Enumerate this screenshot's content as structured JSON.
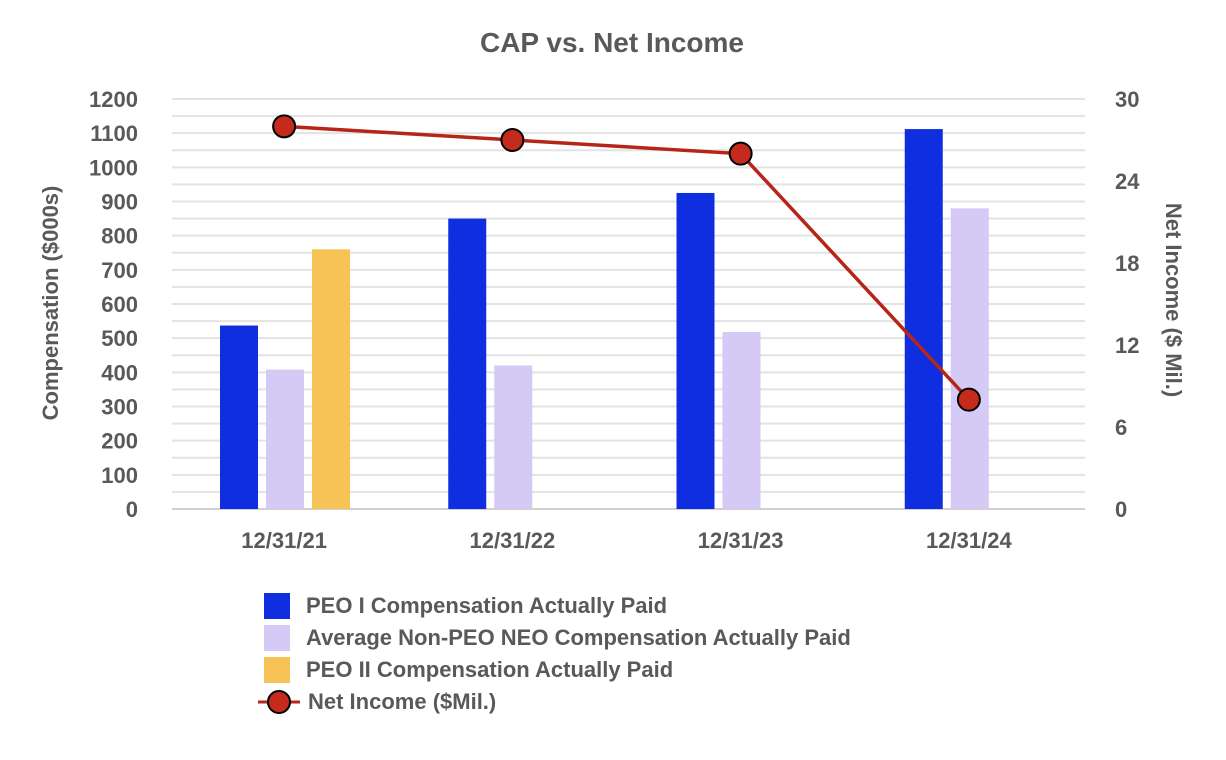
{
  "chart_data": {
    "type": "bar",
    "title": "CAP vs. Net Income",
    "categories": [
      "12/31/21",
      "12/31/22",
      "12/31/23",
      "12/31/24"
    ],
    "ylabel": "Compensation ($000s)",
    "ylim": [
      0,
      1200
    ],
    "yticks": [
      0,
      100,
      200,
      300,
      400,
      500,
      600,
      700,
      800,
      900,
      1000,
      1100,
      1200
    ],
    "y2label": "Net Income ($ Mil.)",
    "y2lim": [
      0,
      30
    ],
    "y2ticks": [
      0,
      6,
      12,
      18,
      24,
      30
    ],
    "grid": true,
    "legend_position": "bottom",
    "series": [
      {
        "name": "PEO I Compensation Actually Paid",
        "type": "bar",
        "axis": "left",
        "color": "#0F2EE0",
        "values": [
          537,
          850,
          925,
          1112
        ]
      },
      {
        "name": "Average Non-PEO NEO Compensation Actually Paid",
        "type": "bar",
        "axis": "left",
        "color": "#D5C9F5",
        "values": [
          408,
          420,
          518,
          880
        ]
      },
      {
        "name": "PEO II Compensation Actually Paid",
        "type": "bar",
        "axis": "left",
        "color": "#F8C356",
        "values": [
          760,
          null,
          null,
          null
        ]
      },
      {
        "name": "Net Income ($Mil.)",
        "type": "line",
        "axis": "right",
        "color": "#B52518",
        "marker_color": "#C42B1C",
        "values": [
          28,
          27,
          26,
          8
        ]
      }
    ]
  }
}
